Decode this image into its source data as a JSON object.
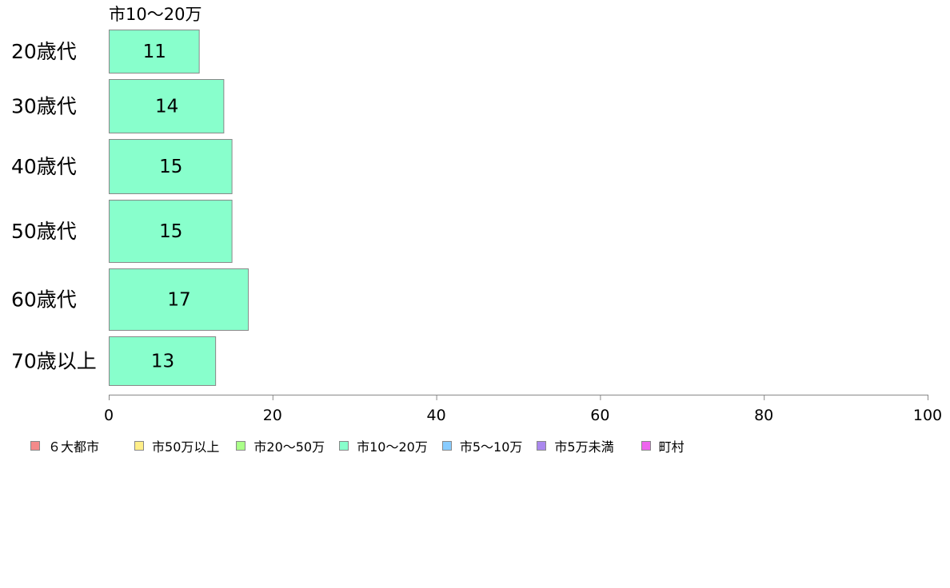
{
  "chart_data": {
    "type": "bar",
    "orientation": "horizontal",
    "subtitle": "市10〜20万",
    "categories": [
      "20歳代",
      "30歳代",
      "40歳代",
      "50歳代",
      "60歳代",
      "70歳以上"
    ],
    "series": [
      {
        "name": "市10〜20万",
        "values": [
          11,
          14,
          15,
          15,
          17,
          13
        ],
        "color": "#88ffcc"
      }
    ],
    "xlim": [
      0,
      100
    ],
    "xticks": [
      "0",
      "20",
      "40",
      "60",
      "80",
      "100"
    ],
    "data_labels": [
      "11",
      "14",
      "15",
      "15",
      "17",
      "13"
    ],
    "grid": false,
    "legend_position": "bottom",
    "legend": [
      {
        "label": "６大都市",
        "color": "#f48a8a"
      },
      {
        "label": "市50万以上",
        "color": "#ffee88"
      },
      {
        "label": "市20〜50万",
        "color": "#aaff88"
      },
      {
        "label": "市10〜20万",
        "color": "#88ffcc"
      },
      {
        "label": "市5〜10万",
        "color": "#88ccff"
      },
      {
        "label": "市5万未満",
        "color": "#aa88ee"
      },
      {
        "label": "町村",
        "color": "#ee66ee"
      }
    ]
  }
}
